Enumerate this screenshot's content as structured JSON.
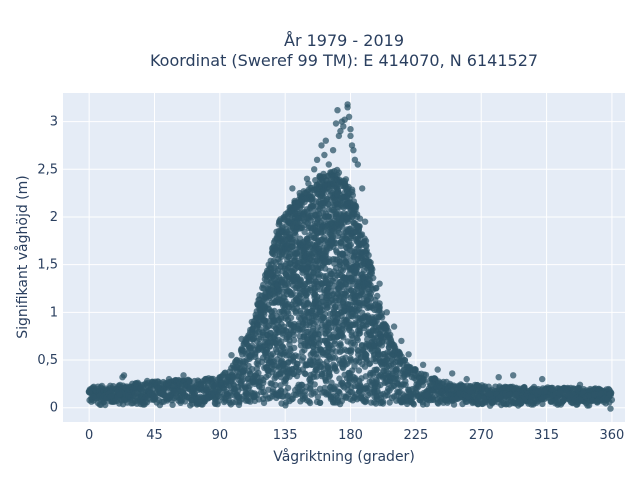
{
  "chart_data": {
    "type": "scatter",
    "title": "År 1979 - 2019",
    "subtitle": "Koordinat (Sweref 99 TM): E 414070, N 6141527",
    "xlabel": "Vågriktning (grader)",
    "ylabel": "Signifikant våghöjd (m)",
    "xlim": [
      -18,
      369
    ],
    "ylim": [
      -0.15,
      3.3
    ],
    "x_ticks": [
      0,
      45,
      90,
      135,
      180,
      225,
      270,
      315,
      360
    ],
    "x_tick_labels": [
      "0",
      "45",
      "90",
      "135",
      "180",
      "225",
      "270",
      "315",
      "360"
    ],
    "y_ticks": [
      0,
      0.5,
      1,
      1.5,
      2,
      2.5,
      3
    ],
    "y_tick_labels": [
      "0",
      "0,5",
      "1",
      "1,5",
      "2",
      "2,5",
      "3"
    ],
    "grid": true,
    "marker_color": "#2e5568",
    "plot_background": "#e5ecf6",
    "envelope": [
      [
        0,
        0.22
      ],
      [
        20,
        0.24
      ],
      [
        45,
        0.28
      ],
      [
        70,
        0.3
      ],
      [
        90,
        0.32
      ],
      [
        100,
        0.48
      ],
      [
        110,
        0.8
      ],
      [
        120,
        1.3
      ],
      [
        130,
        1.95
      ],
      [
        140,
        2.15
      ],
      [
        150,
        2.3
      ],
      [
        160,
        2.45
      ],
      [
        170,
        2.5
      ],
      [
        180,
        2.35
      ],
      [
        190,
        1.8
      ],
      [
        200,
        1.1
      ],
      [
        210,
        0.65
      ],
      [
        225,
        0.4
      ],
      [
        250,
        0.25
      ],
      [
        300,
        0.22
      ],
      [
        360,
        0.2
      ]
    ],
    "outliers": [
      [
        150,
        2.4
      ],
      [
        151,
        2.35
      ],
      [
        155,
        2.5
      ],
      [
        157,
        2.6
      ],
      [
        160,
        2.75
      ],
      [
        162,
        2.65
      ],
      [
        163,
        2.8
      ],
      [
        165,
        2.55
      ],
      [
        168,
        2.7
      ],
      [
        170,
        2.98
      ],
      [
        171,
        3.12
      ],
      [
        172,
        2.85
      ],
      [
        173,
        2.9
      ],
      [
        174,
        3.0
      ],
      [
        175,
        2.95
      ],
      [
        176,
        3.02
      ],
      [
        178,
        3.15
      ],
      [
        178,
        3.18
      ],
      [
        179,
        3.05
      ],
      [
        180,
        2.92
      ],
      [
        180,
        2.85
      ],
      [
        181,
        2.75
      ],
      [
        182,
        2.7
      ],
      [
        183,
        2.6
      ],
      [
        185,
        2.55
      ],
      [
        145,
        2.25
      ],
      [
        140,
        2.3
      ],
      [
        143,
        2.1
      ],
      [
        188,
        2.3
      ],
      [
        190,
        1.95
      ],
      [
        195,
        1.45
      ],
      [
        200,
        1.3
      ],
      [
        205,
        1.0
      ],
      [
        210,
        0.85
      ],
      [
        215,
        0.7
      ],
      [
        220,
        0.56
      ],
      [
        230,
        0.45
      ],
      [
        240,
        0.4
      ],
      [
        250,
        0.36
      ],
      [
        260,
        0.3
      ],
      [
        282,
        0.32
      ],
      [
        292,
        0.34
      ],
      [
        312,
        0.3
      ],
      [
        338,
        0.24
      ],
      [
        359,
        -0.01
      ],
      [
        23,
        0.32
      ],
      [
        24,
        0.34
      ],
      [
        40,
        0.28
      ],
      [
        55,
        0.3
      ],
      [
        65,
        0.34
      ],
      [
        80,
        0.3
      ],
      [
        98,
        0.55
      ],
      [
        105,
        0.72
      ],
      [
        112,
        0.9
      ],
      [
        118,
        1.1
      ],
      [
        125,
        1.4
      ],
      [
        128,
        1.6
      ],
      [
        133,
        1.9
      ],
      [
        137,
        2.05
      ],
      [
        6,
        0.22
      ]
    ]
  }
}
